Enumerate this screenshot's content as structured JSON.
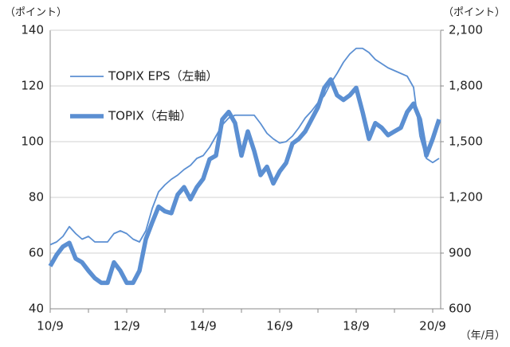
{
  "chart_data": {
    "type": "line",
    "y_unit": "（ポイント）",
    "y2_unit": "（ポイント）",
    "x_unit": "（年/月）",
    "categories": [
      "10/9",
      null,
      null,
      null,
      null,
      null,
      null,
      null,
      null,
      null,
      null,
      null,
      "12/9",
      null,
      null,
      null,
      null,
      null,
      null,
      null,
      null,
      null,
      null,
      null,
      "14/9",
      null,
      null,
      null,
      null,
      null,
      null,
      null,
      null,
      null,
      null,
      null,
      "16/9",
      null,
      null,
      null,
      null,
      null,
      null,
      null,
      null,
      null,
      null,
      null,
      "18/9",
      null,
      null,
      null,
      null,
      null,
      null,
      null,
      null,
      null,
      null,
      null,
      "20/9",
      null
    ],
    "series": [
      {
        "name": "TOPIX  EPS（左軸）",
        "color": "#5b8fd2",
        "values": [
          63,
          64,
          66,
          69.5,
          67,
          65,
          66,
          64,
          64,
          64,
          67,
          68,
          67,
          65,
          64,
          68,
          76,
          82,
          84.5,
          86.5,
          88,
          90,
          91.5,
          94,
          95,
          98,
          102,
          106,
          108.5,
          109.5,
          109.5,
          109.5,
          109.5,
          106.5,
          103,
          101,
          99.5,
          100,
          102,
          105,
          108.5,
          111,
          114,
          116.5,
          121,
          124.5,
          128.5,
          131.5,
          133.5,
          133.5,
          132,
          129.5,
          128,
          126.5,
          125.5,
          124.5,
          123.5,
          119.5,
          102,
          94,
          92.5,
          94
        ]
      },
      {
        "name": "TOPIX（右軸）",
        "color": "#5b8fd2",
        "axis": "y2",
        "values": [
          830,
          890,
          935,
          955,
          870,
          850,
          805,
          765,
          740,
          740,
          850,
          805,
          740,
          740,
          805,
          975,
          1065,
          1150,
          1125,
          1115,
          1215,
          1255,
          1190,
          1255,
          1300,
          1405,
          1425,
          1620,
          1660,
          1600,
          1425,
          1555,
          1450,
          1320,
          1365,
          1275,
          1340,
          1385,
          1490,
          1515,
          1555,
          1620,
          1685,
          1790,
          1835,
          1750,
          1725,
          1750,
          1790,
          1660,
          1515,
          1600,
          1575,
          1535,
          1555,
          1575,
          1660,
          1705,
          1620,
          1425,
          1515,
          1620
        ]
      }
    ],
    "ylim": [
      40,
      140
    ],
    "yticks": [
      40,
      60,
      80,
      100,
      120,
      140
    ],
    "y2lim": [
      600,
      2100
    ],
    "y2ticks": [
      600,
      900,
      {
        "value": 1200,
        "label": "1,200"
      },
      {
        "value": 1500,
        "label": "1,500"
      },
      {
        "value": 1800,
        "label": "1,800"
      },
      {
        "value": 2100,
        "label": "2,100"
      }
    ],
    "grid": true,
    "legend": "upper left"
  }
}
